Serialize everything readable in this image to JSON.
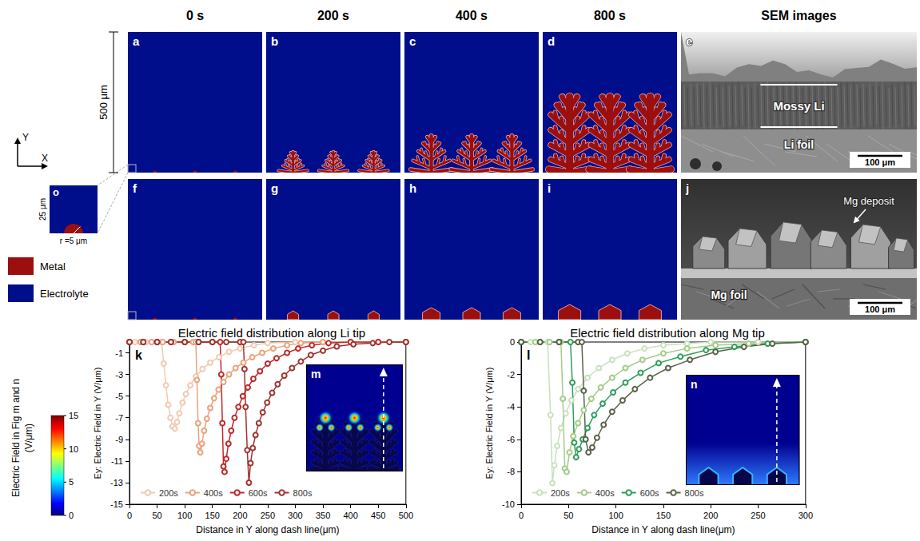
{
  "column_headers": [
    "0 s",
    "200 s",
    "400 s",
    "800 s",
    "SEM images"
  ],
  "panel_letters": {
    "top": [
      "a",
      "b",
      "c",
      "d",
      "e"
    ],
    "bottom": [
      "f",
      "g",
      "h",
      "i",
      "j"
    ]
  },
  "height_label": "500 μm",
  "axis_names": {
    "x": "X",
    "y": "Y"
  },
  "zoom_panel": {
    "letter": "o",
    "size_label": "25 μm",
    "radius_label": "r =5 μm"
  },
  "materials": [
    {
      "label": "Metal",
      "color": "#9b0f0f"
    },
    {
      "label": "Electrolyte",
      "color": "#000e8c"
    }
  ],
  "sem_images": [
    {
      "letter": "e",
      "labels": [
        "Mossy Li",
        "Li foil"
      ],
      "scale_bar": "100 μm"
    },
    {
      "letter": "j",
      "labels": [
        "Mg deposit",
        "Mg foil"
      ],
      "scale_bar": "100 μm"
    }
  ],
  "colorbar": {
    "label": "Electric Field in Fig m and n (V/μm)",
    "range": [
      0,
      15
    ],
    "ticks": [
      0,
      5,
      10,
      15
    ]
  },
  "chart_data": [
    {
      "letter": "k",
      "inset_letter": "m",
      "type": "line",
      "title": "Electric field distribution along Li tip",
      "x_label": "Distance in Y along dash line(μm)",
      "y_label": "Ey: Electric Field in Y (V/μm)",
      "xlim": [
        0,
        500
      ],
      "xticks": [
        0,
        50,
        100,
        150,
        200,
        250,
        300,
        350,
        400,
        450,
        500
      ],
      "ylim": [
        -15,
        0
      ],
      "yticks": [
        -15,
        -13,
        -11,
        -9,
        -7,
        -5,
        -3,
        -1
      ],
      "grid": false,
      "legend": "lower left",
      "marker": "circle",
      "line_style": "solid",
      "series": [
        {
          "name": "200s",
          "color": "#f2c9b1",
          "x": [
            0,
            10,
            20,
            30,
            40,
            50,
            58,
            62,
            66,
            70,
            74,
            78,
            82,
            86,
            90,
            96,
            102,
            110,
            120,
            132,
            146,
            162,
            180,
            200,
            225,
            250,
            300,
            350,
            400,
            450,
            500
          ],
          "values": [
            0,
            0,
            0,
            0,
            0,
            0,
            0,
            -2.0,
            -4.0,
            -5.8,
            -7.0,
            -7.8,
            -8.0,
            -7.4,
            -6.6,
            -5.6,
            -4.8,
            -4.0,
            -3.2,
            -2.5,
            -1.9,
            -1.4,
            -0.9,
            -0.6,
            -0.3,
            -0.1,
            0,
            0,
            0,
            0,
            0
          ]
        },
        {
          "name": "400s",
          "color": "#eaa27c",
          "x": [
            0,
            20,
            40,
            60,
            80,
            100,
            115,
            120,
            122,
            124,
            126,
            128,
            131,
            135,
            140,
            146,
            153,
            161,
            170,
            180,
            192,
            206,
            222,
            240,
            260,
            285,
            310,
            350,
            400,
            450,
            500
          ],
          "values": [
            0,
            0,
            0,
            0,
            0,
            0,
            0,
            0,
            -3.5,
            -7.5,
            -9.6,
            -10.2,
            -9.4,
            -8.2,
            -7.1,
            -6.1,
            -5.2,
            -4.4,
            -3.7,
            -3.0,
            -2.4,
            -1.9,
            -1.4,
            -1.0,
            -0.6,
            -0.3,
            -0.1,
            0,
            0,
            0,
            0
          ]
        },
        {
          "name": "600s",
          "color": "#c0282c",
          "x": [
            0,
            25,
            50,
            75,
            100,
            125,
            150,
            164,
            166,
            168,
            170,
            172,
            175,
            179,
            184,
            190,
            197,
            205,
            214,
            224,
            236,
            250,
            266,
            285,
            305,
            330,
            360,
            400,
            450,
            500
          ],
          "values": [
            0,
            0,
            0,
            0,
            0,
            0,
            0,
            0,
            -3.0,
            -7.5,
            -11.5,
            -12.0,
            -10.8,
            -9.4,
            -8.2,
            -7.0,
            -6.0,
            -5.0,
            -4.2,
            -3.4,
            -2.7,
            -2.0,
            -1.5,
            -1.0,
            -0.6,
            -0.3,
            -0.1,
            0,
            0,
            0
          ]
        },
        {
          "name": "800s",
          "color": "#9e3530",
          "x": [
            0,
            25,
            50,
            75,
            100,
            125,
            150,
            175,
            200,
            206,
            208,
            210,
            213,
            216,
            219,
            223,
            228,
            234,
            241,
            249,
            258,
            268,
            280,
            294,
            310,
            328,
            350,
            375,
            405,
            440,
            470,
            500
          ],
          "values": [
            0,
            0,
            0,
            0,
            0,
            0,
            0,
            0,
            0,
            0,
            -2.5,
            -6.0,
            -10.0,
            -13.0,
            -11.2,
            -9.8,
            -8.6,
            -7.5,
            -6.5,
            -5.6,
            -4.7,
            -3.9,
            -3.1,
            -2.4,
            -1.8,
            -1.2,
            -0.8,
            -0.4,
            -0.2,
            -0.1,
            0,
            0
          ]
        }
      ]
    },
    {
      "letter": "l",
      "inset_letter": "n",
      "type": "line",
      "title": "Electric field distribution along Mg tip",
      "x_label": "Distance in Y along dash line(μm)",
      "y_label": "Ey: Electric Field in Y (V/μm)",
      "xlim": [
        0,
        300
      ],
      "xticks": [
        0,
        50,
        100,
        150,
        200,
        250,
        300
      ],
      "ylim": [
        -10,
        0
      ],
      "yticks": [
        -10,
        -8,
        -6,
        -4,
        -2,
        0
      ],
      "grid": false,
      "legend": "lower left",
      "marker": "circle",
      "line_style": "solid",
      "series": [
        {
          "name": "200s",
          "color": "#c9e0bf",
          "x": [
            0,
            10,
            20,
            28,
            31,
            33,
            35,
            38,
            42,
            47,
            53,
            60,
            70,
            82,
            96,
            112,
            130,
            150,
            175,
            200,
            250,
            300
          ],
          "values": [
            0,
            0,
            0,
            0,
            -4.5,
            -8.7,
            -7.6,
            -6.4,
            -5.3,
            -4.4,
            -3.6,
            -2.9,
            -2.2,
            -1.6,
            -1.1,
            -0.7,
            -0.4,
            -0.2,
            -0.1,
            0,
            0,
            0
          ]
        },
        {
          "name": "400s",
          "color": "#a3cc88",
          "x": [
            0,
            15,
            30,
            42,
            44,
            46,
            48,
            51,
            55,
            60,
            66,
            74,
            84,
            96,
            110,
            128,
            150,
            175,
            205,
            240,
            300
          ],
          "values": [
            0,
            0,
            0,
            0,
            -3.5,
            -7.8,
            -8.0,
            -6.8,
            -5.8,
            -5.0,
            -4.2,
            -3.5,
            -2.8,
            -2.2,
            -1.6,
            -1.1,
            -0.7,
            -0.4,
            -0.2,
            -0.1,
            0
          ]
        },
        {
          "name": "600s",
          "color": "#2e9e5b",
          "x": [
            0,
            20,
            40,
            52,
            54,
            56,
            58,
            61,
            65,
            70,
            77,
            86,
            97,
            110,
            126,
            145,
            168,
            195,
            225,
            260,
            300
          ],
          "values": [
            0,
            0,
            0,
            0,
            -2.5,
            -6.2,
            -7.1,
            -6.6,
            -6.0,
            -5.3,
            -4.5,
            -3.8,
            -3.1,
            -2.5,
            -1.9,
            -1.3,
            -0.9,
            -0.5,
            -0.3,
            -0.1,
            0
          ]
        },
        {
          "name": "800s",
          "color": "#5b6347",
          "x": [
            0,
            20,
            40,
            60,
            64,
            66,
            68,
            71,
            75,
            80,
            87,
            96,
            107,
            120,
            136,
            155,
            178,
            205,
            235,
            265,
            300
          ],
          "values": [
            0,
            0,
            0,
            0,
            0,
            -3.0,
            -6.0,
            -6.8,
            -6.5,
            -5.9,
            -5.1,
            -4.3,
            -3.6,
            -2.9,
            -2.2,
            -1.6,
            -1.1,
            -0.6,
            -0.3,
            -0.1,
            0
          ]
        }
      ]
    }
  ]
}
